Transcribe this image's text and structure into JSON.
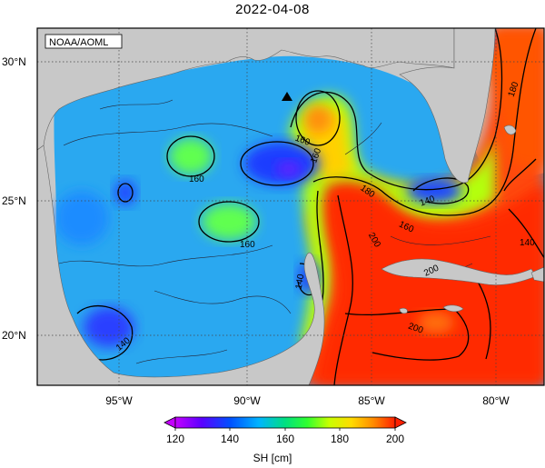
{
  "title": "2022-04-08",
  "credit": "NOAA/AOML",
  "map": {
    "lat_labels": [
      "30°N",
      "25°N",
      "20°N"
    ],
    "lon_labels": [
      "95°W",
      "90°W",
      "85°W",
      "80°W"
    ],
    "contour_labels": [
      "160",
      "160",
      "160",
      "160",
      "140",
      "140",
      "160",
      "180",
      "200",
      "200",
      "200",
      "140",
      "140",
      "180"
    ],
    "marker": "triangle-marker"
  },
  "colorbar": {
    "ticks": [
      "120",
      "140",
      "160",
      "180",
      "200"
    ],
    "label": "SH [cm]",
    "colors": [
      "#c400ff",
      "#5a00ff",
      "#0050ff",
      "#00b4ff",
      "#00e080",
      "#30ff30",
      "#c8ff00",
      "#ffdc00",
      "#ff8c00",
      "#ff2000"
    ]
  }
}
